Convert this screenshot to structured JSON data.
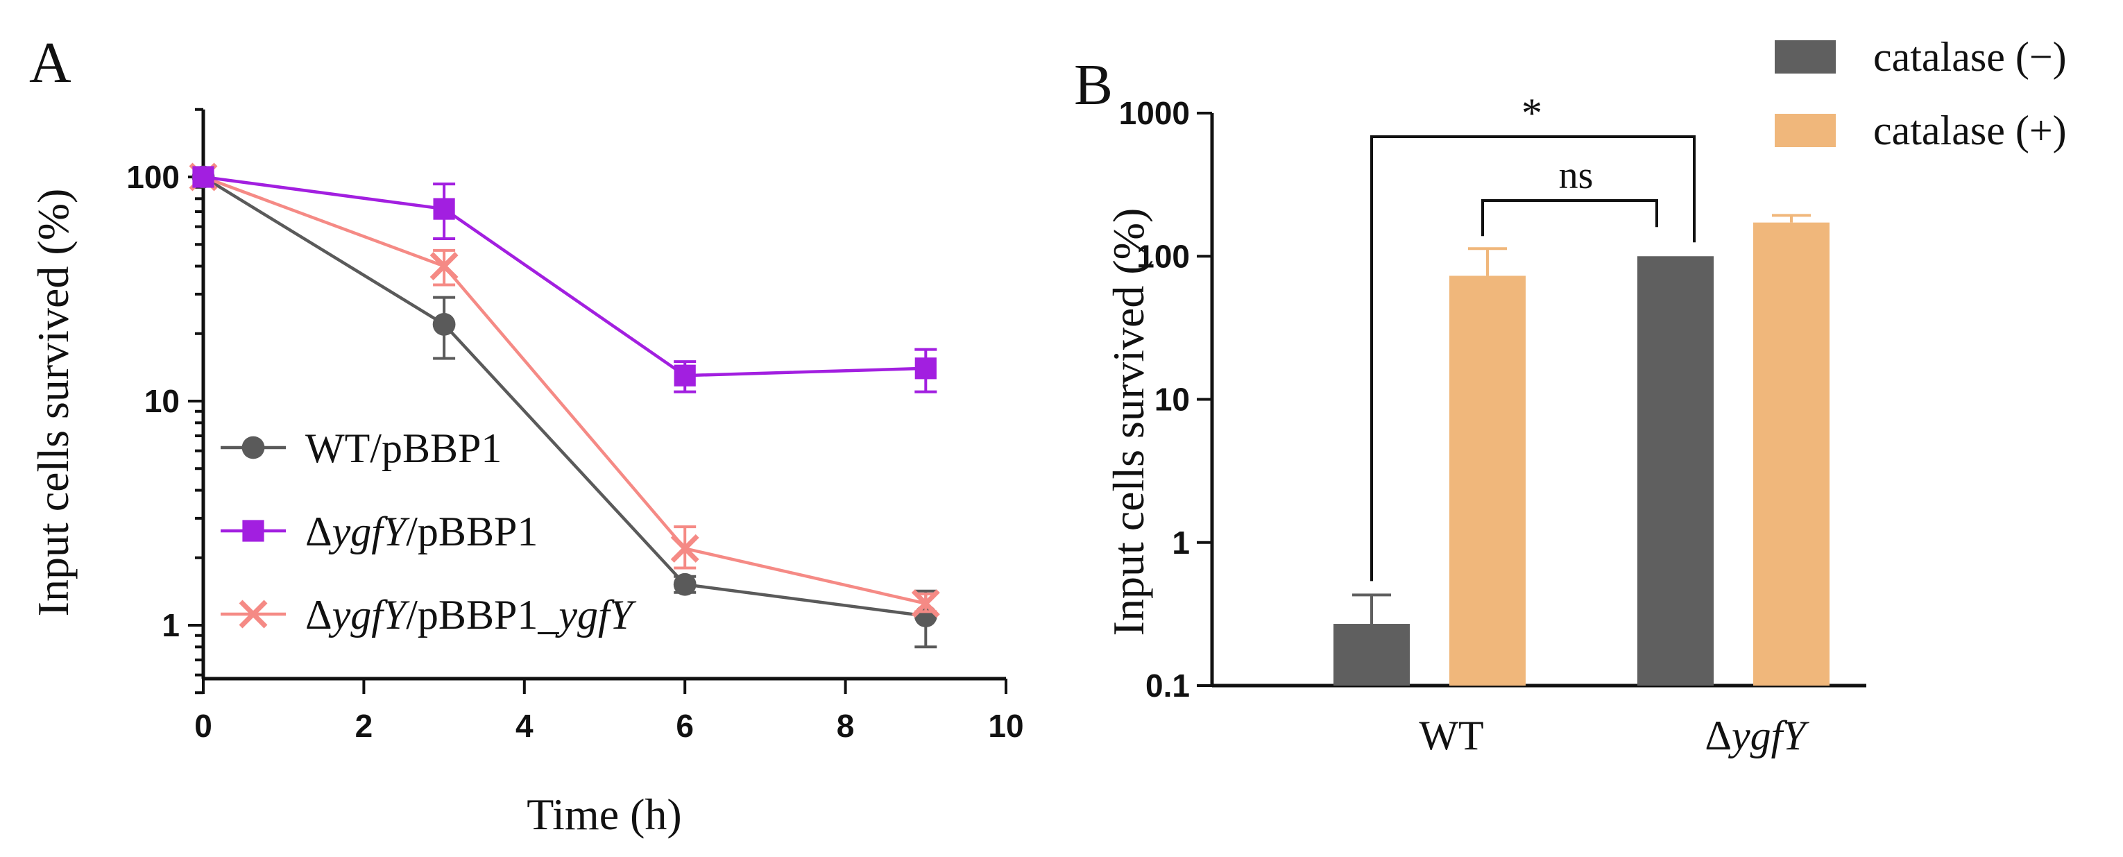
{
  "chart_data": [
    {
      "panel": "A",
      "type": "line",
      "xlabel": "Time (h)",
      "ylabel": "Input cells survived (%)",
      "xlim": [
        0,
        10
      ],
      "ylim": [
        0.5,
        200
      ],
      "yscale": "log",
      "x_ticks": [
        0,
        2,
        4,
        6,
        8,
        10
      ],
      "y_ticks": [
        1,
        10,
        100
      ],
      "legend_position": "lower-left",
      "series": [
        {
          "name": "WT/pBBP1",
          "name_parts": [
            "WT/pBBP1"
          ],
          "marker": "circle",
          "color": "#5a5a5a",
          "x": [
            0,
            3,
            6,
            9
          ],
          "values": [
            100,
            22,
            1.52,
            1.1
          ],
          "err_low": [
            0,
            15.5,
            1.4,
            0.8
          ],
          "err_high": [
            0,
            29,
            1.65,
            1.42
          ]
        },
        {
          "name": "ΔygfY/pBBP1",
          "name_parts": [
            "Δ",
            "ygfY",
            "/pBBP1"
          ],
          "marker": "square",
          "color": "#a21fe0",
          "x": [
            0,
            3,
            6,
            9
          ],
          "values": [
            100,
            72,
            13,
            14
          ],
          "err_low": [
            0,
            53,
            11,
            11
          ],
          "err_high": [
            0,
            93,
            15,
            17
          ]
        },
        {
          "name": "ΔygfY/pBBP1_ygfY",
          "name_parts": [
            "Δ",
            "ygfY",
            "/pBBP1_",
            "ygfY"
          ],
          "marker": "cross",
          "color": "#f58a85",
          "x": [
            0,
            3,
            6,
            9
          ],
          "values": [
            100,
            40,
            2.2,
            1.25
          ],
          "err_low": [
            0,
            33,
            1.8,
            1.15
          ],
          "err_high": [
            0,
            47,
            2.75,
            1.38
          ]
        }
      ]
    },
    {
      "panel": "B",
      "type": "bar",
      "ylabel": "Input cells survived (%)",
      "yscale": "log",
      "ylim": [
        0.1,
        1000
      ],
      "y_ticks": [
        "0.1",
        "1",
        "10",
        "100",
        "1000"
      ],
      "categories": [
        "WT",
        "ΔygfY"
      ],
      "category_parts": [
        [
          "WT"
        ],
        [
          "Δ",
          "ygfY"
        ]
      ],
      "legend_position": "top-right",
      "series": [
        {
          "name": "catalase (−)",
          "color": "#5f5f5f",
          "values": [
            0.27,
            100
          ],
          "err_high": [
            0.43,
            null
          ]
        },
        {
          "name": "catalase (+)",
          "color": "#f0b77b",
          "values": [
            73,
            172
          ],
          "err_high": [
            113,
            193
          ]
        }
      ],
      "significance": [
        {
          "label": "*",
          "between": [
            "WT catalase (−)",
            "ΔygfY catalase (−)"
          ]
        },
        {
          "label": "ns",
          "between": [
            "WT catalase (+)",
            "ΔygfY catalase (−)"
          ]
        }
      ]
    }
  ]
}
